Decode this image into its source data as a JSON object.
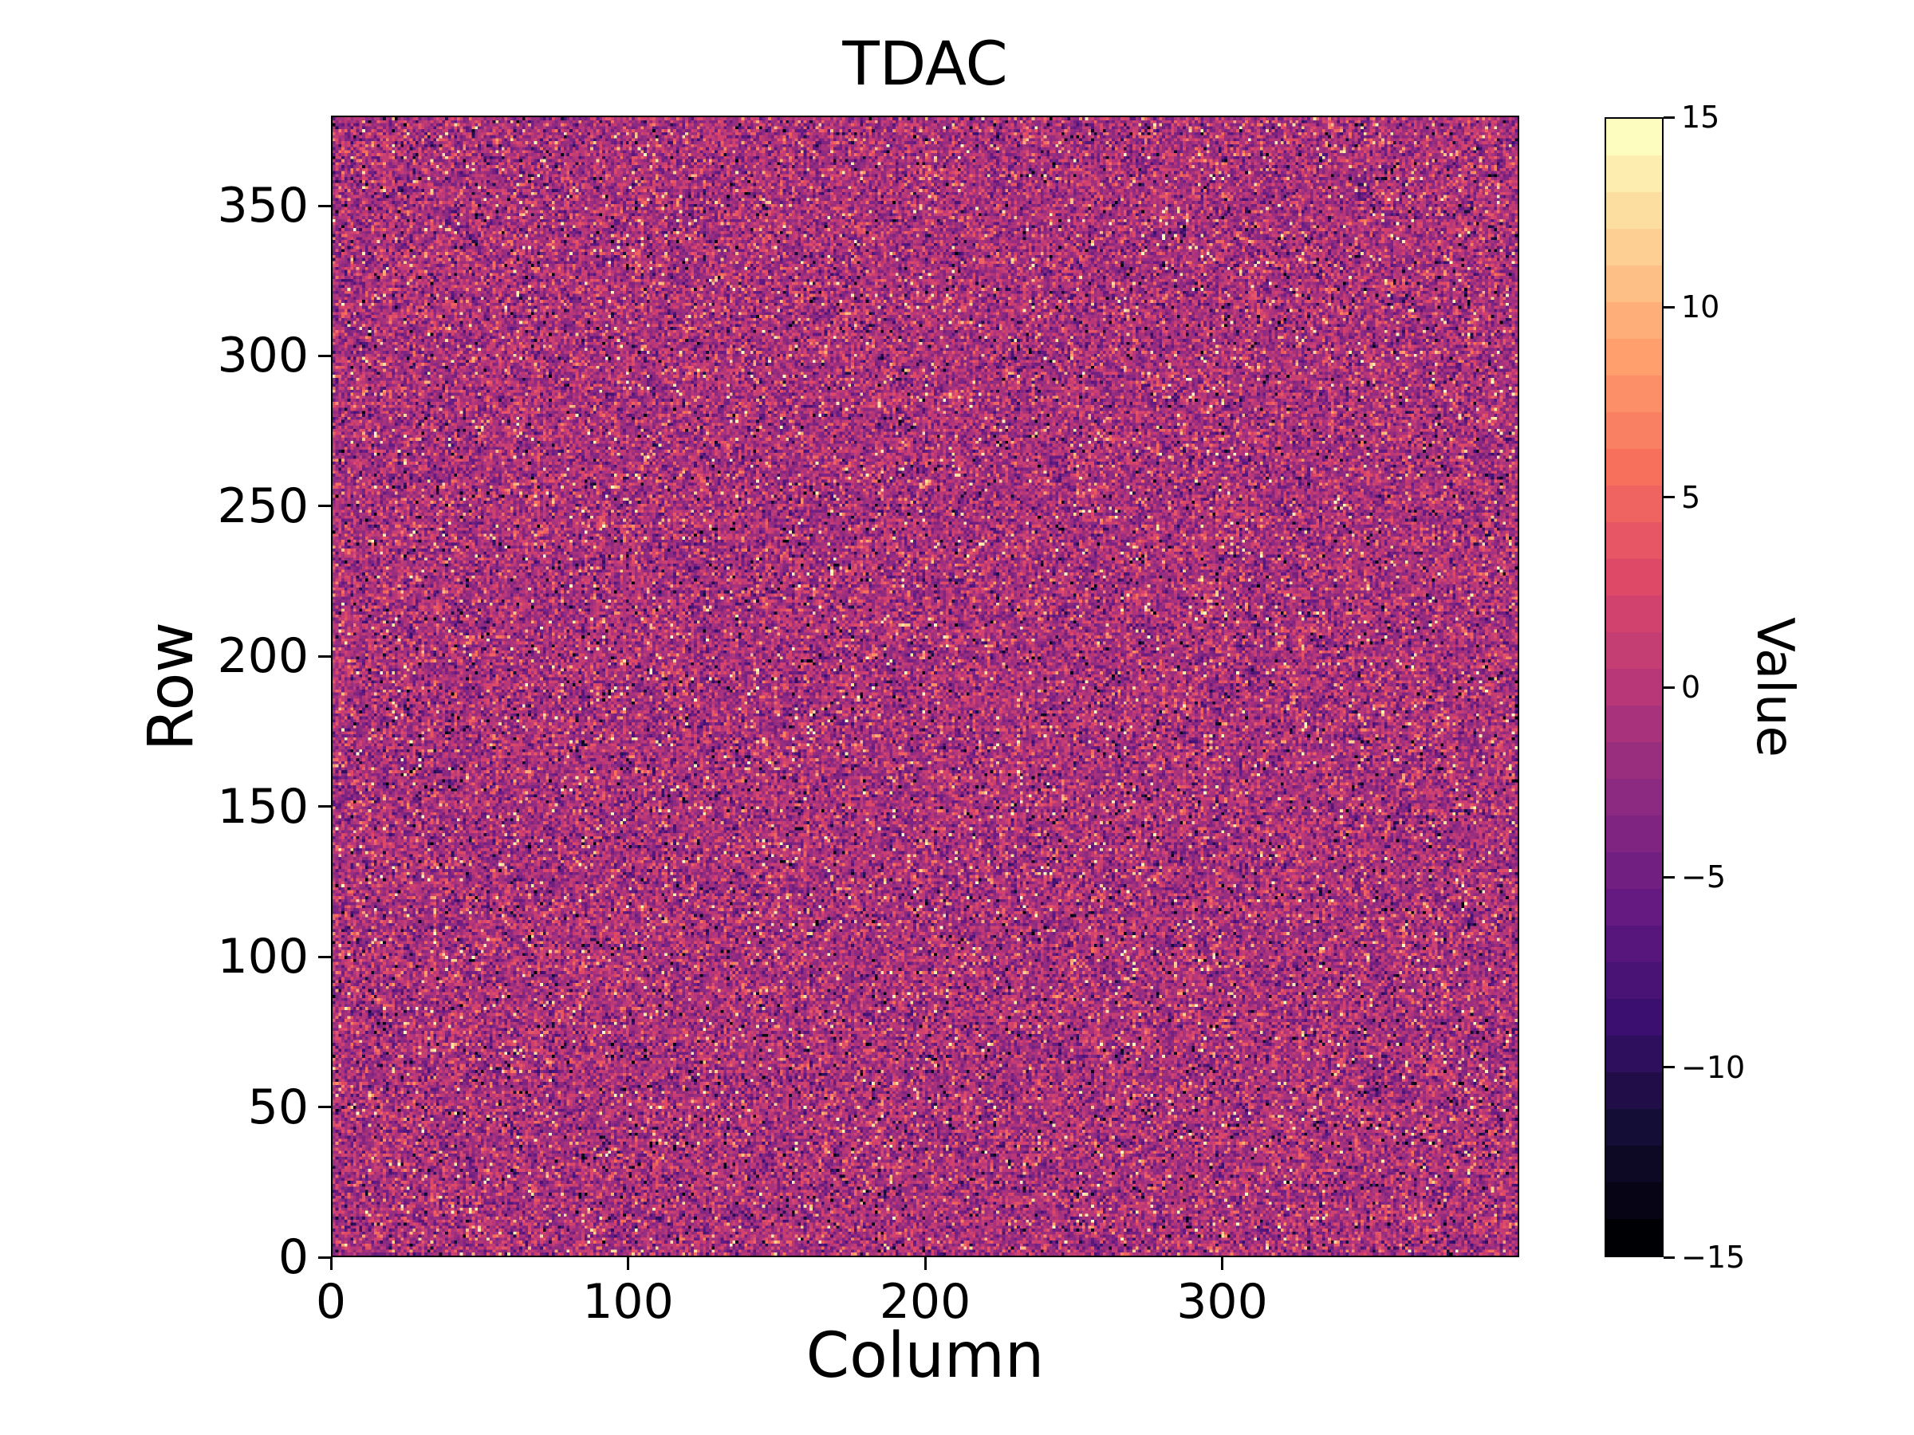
{
  "chart_data": {
    "type": "heatmap",
    "title": "TDAC",
    "xlabel": "Column",
    "ylabel": "Row",
    "cols": 400,
    "rows": 380,
    "xlim": [
      0,
      400
    ],
    "ylim": [
      0,
      380
    ],
    "vmin": -15,
    "vmax": 15,
    "xticks": [
      0,
      100,
      200,
      300
    ],
    "yticks": [
      0,
      50,
      100,
      150,
      200,
      250,
      300,
      350
    ],
    "colorbar": {
      "label": "Value",
      "levels": 31,
      "ticks": [
        {
          "value": 15,
          "label": "15"
        },
        {
          "value": 10,
          "label": "10"
        },
        {
          "value": 5,
          "label": "5"
        },
        {
          "value": 0,
          "label": "0"
        },
        {
          "value": -5,
          "label": "−5"
        },
        {
          "value": -10,
          "label": "−10"
        },
        {
          "value": -15,
          "label": "−15"
        }
      ]
    },
    "colormap": {
      "name": "magma",
      "stops": [
        [
          0.0,
          "#000004"
        ],
        [
          0.1,
          "#140e36"
        ],
        [
          0.2,
          "#3b0f70"
        ],
        [
          0.3,
          "#641a80"
        ],
        [
          0.4,
          "#8c2981"
        ],
        [
          0.5,
          "#b73779"
        ],
        [
          0.6,
          "#de4968"
        ],
        [
          0.7,
          "#f7705c"
        ],
        [
          0.8,
          "#fe9f6d"
        ],
        [
          0.9,
          "#fecf92"
        ],
        [
          1.0,
          "#fcfdbf"
        ]
      ]
    },
    "noise": {
      "description": "per-pixel integer values; dense speckle noise roughly gaussian around -1 with bright/dark outliers spanning full -15..15 range",
      "seed": 42,
      "mean": -1,
      "std": 3.2,
      "outlier_frac": 0.12
    },
    "grid": false,
    "legend": "colorbar-right"
  }
}
